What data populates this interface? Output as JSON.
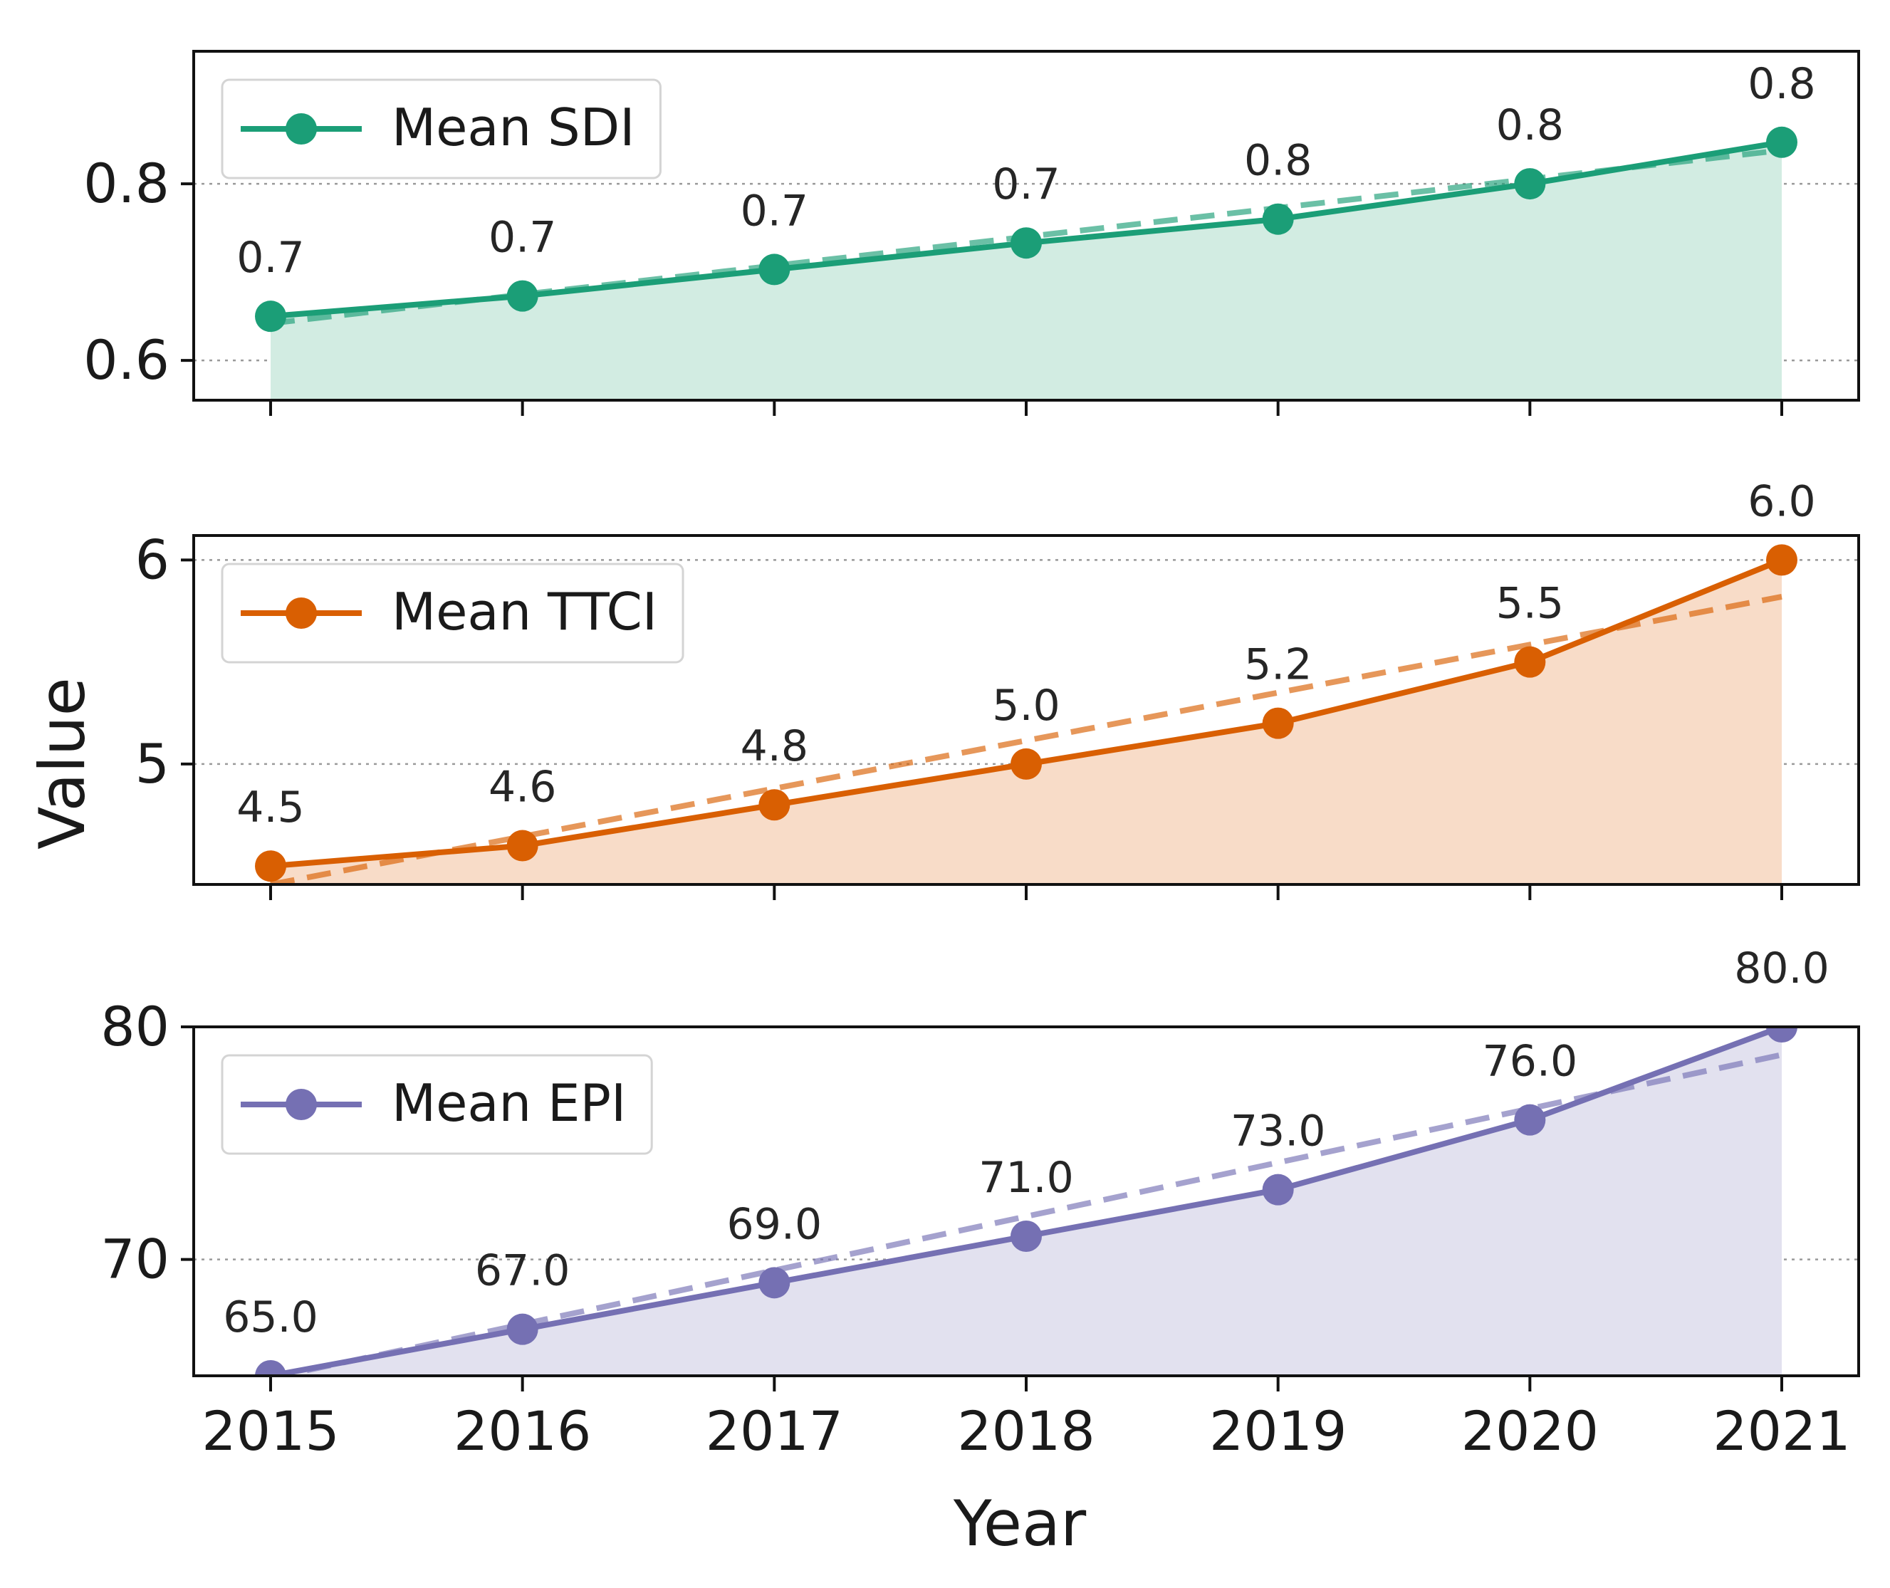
{
  "chart_data": {
    "type": "line",
    "layout": "three stacked panels sharing the x axis",
    "xlabel": "Year",
    "ylabel": "Value",
    "x": [
      2015,
      2016,
      2017,
      2018,
      2019,
      2020,
      2021
    ],
    "x_tick_labels": [
      "2015",
      "2016",
      "2017",
      "2018",
      "2019",
      "2020",
      "2021"
    ],
    "grid": "horizontal dotted gridlines",
    "panels": [
      {
        "series_name": "Mean SDI",
        "values": [
          0.65,
          0.673,
          0.703,
          0.733,
          0.76,
          0.8,
          0.847
        ],
        "data_labels": [
          "0.7",
          "0.7",
          "0.7",
          "0.7",
          "0.8",
          "0.8",
          "0.8"
        ],
        "trend_line": {
          "style": "dashed",
          "start": 0.642,
          "end": 0.838
        },
        "ylim": [
          0.555,
          0.95
        ],
        "yticks": [
          0.6,
          0.8
        ],
        "ytick_labels": [
          "0.6",
          "0.8"
        ],
        "color": "#1b9e77",
        "fill_color": "#d2ece2",
        "legend": "upper left"
      },
      {
        "series_name": "Mean TTCI",
        "values": [
          4.5,
          4.6,
          4.8,
          5.0,
          5.2,
          5.5,
          6.0
        ],
        "data_labels": [
          "4.5",
          "4.6",
          "4.8",
          "5.0",
          "5.2",
          "5.5",
          "6.0"
        ],
        "trend_line": {
          "style": "dashed",
          "start": 4.41,
          "end": 5.82
        },
        "ylim": [
          4.41,
          6.12
        ],
        "yticks": [
          5,
          6
        ],
        "ytick_labels": [
          "5",
          "6"
        ],
        "color": "#d95f02",
        "fill_color": "#f8dcc8",
        "legend": "upper left"
      },
      {
        "series_name": "Mean EPI",
        "values": [
          65.0,
          67.0,
          69.0,
          71.0,
          73.0,
          76.0,
          80.0
        ],
        "data_labels": [
          "65.0",
          "67.0",
          "69.0",
          "71.0",
          "73.0",
          "76.0",
          "80.0"
        ],
        "trend_line": {
          "style": "dashed",
          "start": 64.9,
          "end": 78.8
        },
        "ylim": [
          65.0,
          80.0
        ],
        "yticks": [
          70,
          80
        ],
        "ytick_labels": [
          "70",
          "80"
        ],
        "color": "#7570b3",
        "fill_color": "#e2e1ef",
        "legend": "upper left"
      }
    ]
  }
}
